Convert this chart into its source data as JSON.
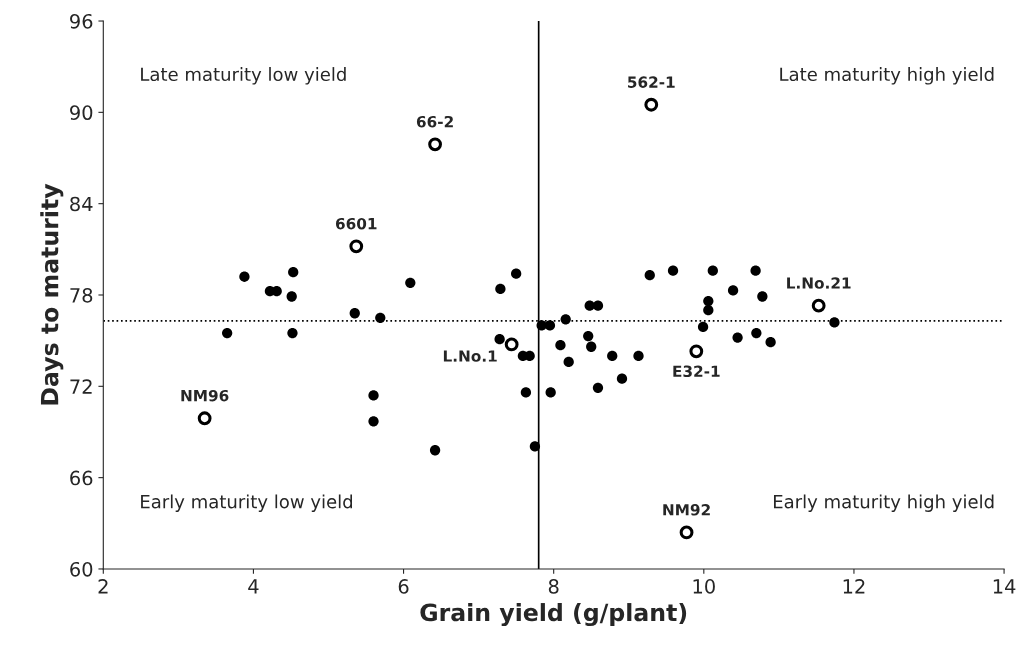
{
  "chart_data": {
    "type": "scatter",
    "xlabel": "Grain yield (g/plant)",
    "ylabel": "Days to maturity",
    "xlim": [
      2,
      14
    ],
    "ylim": [
      60,
      96
    ],
    "xticks": [
      2,
      4,
      6,
      8,
      10,
      12,
      14
    ],
    "yticks": [
      60,
      66,
      72,
      78,
      84,
      90,
      96
    ],
    "grid": false,
    "legend": false,
    "marker": "circle",
    "series": [
      {
        "color": "#000000",
        "x": [
          3.88,
          4.53,
          4.22,
          4.31,
          4.51,
          6.09,
          5.35,
          5.69,
          3.65,
          4.52,
          5.6,
          5.6,
          6.42,
          7.75,
          7.29,
          7.5,
          7.84,
          7.95,
          8.16,
          8.48,
          8.59,
          7.28,
          7.59,
          7.68,
          8.46,
          8.5,
          8.09,
          8.2,
          8.78,
          9.13,
          8.91,
          8.59,
          7.63,
          7.96,
          9.28,
          9.59,
          10.12,
          10.69,
          10.39,
          10.78,
          10.06,
          10.06,
          9.99,
          10.45,
          10.7,
          10.89,
          11.74
        ],
        "values": [
          79.2,
          79.5,
          78.25,
          78.25,
          77.9,
          78.8,
          76.8,
          76.5,
          75.5,
          75.5,
          71.4,
          69.7,
          67.8,
          68.05,
          78.4,
          79.4,
          76.0,
          76.0,
          76.4,
          77.3,
          77.3,
          75.1,
          74.0,
          74.0,
          75.3,
          74.6,
          74.7,
          73.6,
          74.0,
          74.0,
          72.5,
          71.9,
          71.6,
          71.6,
          79.3,
          79.6,
          79.6,
          79.6,
          78.3,
          77.9,
          77.6,
          77.0,
          75.9,
          75.2,
          75.5,
          74.9,
          76.2
        ]
      },
      {
        "color": "#ffffff",
        "x": [
          5.37,
          3.35,
          6.42,
          9.3,
          7.44,
          9.9,
          11.53,
          9.77
        ],
        "values": [
          81.2,
          69.9,
          87.9,
          90.5,
          74.75,
          74.3,
          77.3,
          62.4
        ]
      }
    ],
    "ref_lines": [
      {
        "axis": "x",
        "value": 7.8,
        "line_style": "solid"
      },
      {
        "axis": "y",
        "value": 76.3,
        "line_style": "dotted"
      }
    ],
    "annotations": [
      "Late maturity low yield",
      "Late maturity high yield",
      "Early maturity low yield",
      "Early maturity high yield",
      {
        "text": "6601",
        "x": 5.37,
        "y": 81.2
      },
      {
        "text": "NM96",
        "x": 3.35,
        "y": 69.9
      },
      {
        "text": "66-2",
        "x": 6.42,
        "y": 87.9
      },
      {
        "text": "562-1",
        "x": 9.3,
        "y": 90.5
      },
      {
        "text": "L.No.1",
        "x": 7.44,
        "y": 74.75
      },
      {
        "text": "E32-1",
        "x": 9.9,
        "y": 74.3
      },
      {
        "text": "L.No.21",
        "x": 11.53,
        "y": 77.3
      },
      {
        "text": "NM92",
        "x": 9.77,
        "y": 62.4
      }
    ]
  }
}
